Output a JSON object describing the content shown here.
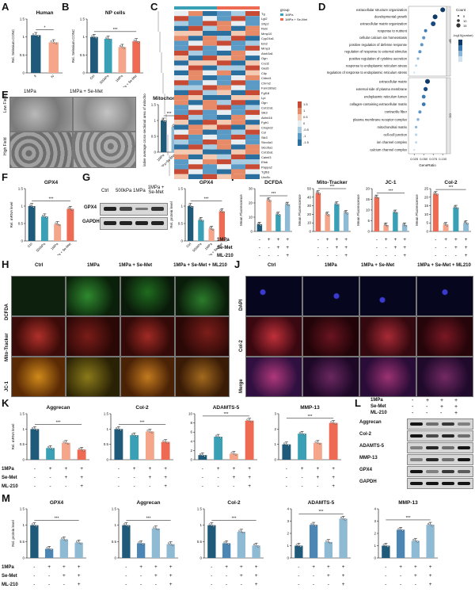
{
  "panels": {
    "A": "A",
    "B": "B",
    "C": "C",
    "D": "D",
    "E": "E",
    "F": "F",
    "G": "G",
    "H": "H",
    "I": "I",
    "J": "J",
    "K": "K",
    "L": "L",
    "M": "M"
  },
  "colors": {
    "dark": "#1f5a7a",
    "teal": "#3aa0b5",
    "salmon": "#f4a58a",
    "red": "#ef6a52",
    "light": "#8fbad3",
    "blue": "#4c86b4"
  },
  "panelA": {
    "title": "Human",
    "ylabel": "Rel. Selenium CONC",
    "sig": "*",
    "categories": [
      "II",
      "IV"
    ]
  },
  "panelB": {
    "title": "NP cells",
    "ylabel": "Rel. Selenium CONC",
    "categories": [
      "Ctrl",
      "500kPa",
      "1MPa",
      "1MPa + Se-Met"
    ],
    "sig": [
      "ns",
      "***",
      "*"
    ]
  },
  "panelC": {
    "legend_title": "group",
    "legend": [
      "1MPa",
      "1MPa + Se-Met"
    ],
    "genes": [
      "Tg",
      "Lgi2",
      "Sfrp2",
      "Reln",
      "Mmp10",
      "Cyp24a1",
      "Eln2",
      "Mmp3",
      "Atoh3a1",
      "Ogn",
      "Cxcl2",
      "Gas6",
      "Cilp",
      "Cldnd1",
      "Chrm2",
      "Fam180a1",
      "Fgf18",
      "Lpl",
      "Ogn",
      "Col12a1",
      "Sik3",
      "Abhd16",
      "Fgfr1",
      "Crispld2",
      "Col",
      "Sik3",
      "Slco4a1",
      "Slco5a1",
      "Col16a1",
      "Calml3",
      "Efnb",
      "Pappa2",
      "Tgfb3",
      "Unc5c"
    ],
    "scale": [
      "1.5",
      "1",
      "0.5",
      "0",
      "-0.5",
      "-1",
      "-1.5"
    ]
  },
  "panelD": {
    "top_terms": [
      "extracellular structure organization",
      "developmental growth",
      "extracellular matrix organization",
      "response to nutrient",
      "cellular calcium ion homeostasis",
      "positive regulation of defense response",
      "regulation of response to external stimulus",
      "positive regulation of cytokine secretion",
      "response to endoplasmic reticulum stress",
      "regulation of response to endoplasmic reticulum stress"
    ],
    "bottom_terms": [
      "extracellular matrix",
      "external side of plasma membrane",
      "endoplasmic reticulum lumen",
      "collagen-containing extracellular matrix",
      "contractile fiber",
      "plasma membrane receptor complex",
      "mitochondrial matrix",
      "cell-cell junction",
      "ion channel complex",
      "calcium channel complex"
    ],
    "xlabel": "GeneRatio",
    "xticks": [
      "0.025",
      "0.050",
      "0.075",
      "0.100"
    ],
    "count_title": "Count",
    "count_vals": [
      "5",
      "10",
      "15"
    ],
    "padj_title": "-log10(pvalue)",
    "side_labels": [
      "BP",
      "CC"
    ]
  },
  "panelE": {
    "headers": [
      "1MPa",
      "1MPa + Se-Met"
    ],
    "rows": [
      "Low Field",
      "High Field"
    ],
    "chart1_title": "Mitochondria",
    "chart2_title": "ER",
    "ylabel1": "Relative average cross-sectional area of mitochondria",
    "ylabel2": "Relative width of ER",
    "sig": "*",
    "xcats": [
      "1MPa",
      "1MPa+Se-Met"
    ]
  },
  "panelF": {
    "title": "GPX4",
    "ylabel": "Rel. mRNA level",
    "categories": [
      "Ctrl",
      "500kPa",
      "1MPa",
      "1MPa + Se-Met"
    ],
    "sig": [
      "***",
      "***",
      "***"
    ]
  },
  "panelG": {
    "headers": [
      "Ctrl",
      "500kPa",
      "1MPa",
      "1MPa + Se-Met"
    ],
    "bands": [
      "GPX4",
      "GAPDH"
    ],
    "title": "GPX4",
    "ylabel": "Rel. protein level",
    "sig": [
      "****",
      "****",
      "**"
    ]
  },
  "panelH": {
    "headers": [
      "Ctrl",
      "1MPa",
      "1MPa + Se-Met",
      "1MPa + Se-Met + ML210"
    ],
    "rows": [
      "DCFDA",
      "Mito-Tracker",
      "JC-1"
    ]
  },
  "panelI": {
    "charts": [
      {
        "title": "DCFDA",
        "ylabel": "Mean Fluorescence"
      },
      {
        "title": "Mito-Tracker",
        "ylabel": "Mean Fluorescence"
      },
      {
        "title": "JC-1",
        "ylabel": "Mean Fluorescence"
      },
      {
        "title": "Col-2",
        "ylabel": "Mean Fluorescence"
      }
    ],
    "conds": [
      "1MPa",
      "Se-Met",
      "ML-210"
    ],
    "signs": [
      [
        "-",
        "+",
        "+",
        "+"
      ],
      [
        "-",
        "-",
        "+",
        "+"
      ],
      [
        "-",
        "-",
        "-",
        "+"
      ]
    ]
  },
  "panelJ": {
    "headers": [
      "Ctrl",
      "1MPa",
      "1MPa + Se-Met",
      "1MPa + Se-Met + ML210"
    ],
    "rows": [
      "DAPI",
      "Col-2",
      "Merge"
    ]
  },
  "panelK": {
    "ylabel": "Rel. mRNA level",
    "charts": [
      "Aggrecan",
      "Col-2",
      "ADAMTS-5",
      "MMP-13"
    ],
    "conds": [
      "1MPa",
      "Se-Met",
      "ML-210"
    ],
    "signs": [
      [
        "-",
        "+",
        "+",
        "+"
      ],
      [
        "-",
        "-",
        "+",
        "+"
      ],
      [
        "-",
        "-",
        "-",
        "+"
      ]
    ]
  },
  "panelL": {
    "conds": [
      "1MPa",
      "Se-Met",
      "ML-210"
    ],
    "signs": [
      [
        "-",
        "+",
        "+",
        "+"
      ],
      [
        "-",
        "-",
        "+",
        "+"
      ],
      [
        "-",
        "-",
        "-",
        "+"
      ]
    ],
    "bands": [
      "Aggrecan",
      "Col-2",
      "ADAMTS-5",
      "MMP-13",
      "GPX4",
      "GAPDH"
    ]
  },
  "panelM": {
    "ylabel": "Rel. protein level",
    "charts": [
      "GPX4",
      "Aggrecan",
      "Col-2",
      "ADAMTS-5",
      "MMP-13"
    ],
    "conds": [
      "1MPa",
      "Se-Met",
      "ML-210"
    ],
    "signs": [
      [
        "-",
        "+",
        "+",
        "+"
      ],
      [
        "-",
        "-",
        "+",
        "+"
      ],
      [
        "-",
        "-",
        "-",
        "+"
      ]
    ]
  },
  "chart_data": [
    {
      "type": "bar",
      "id": "A",
      "categories": [
        "II",
        "IV"
      ],
      "values": [
        1.05,
        0.85
      ],
      "ylim": [
        0,
        1.5
      ],
      "yticks": [
        0,
        0.5,
        1.0,
        1.5
      ],
      "colors": [
        "#1f5a7a",
        "#f4a58a"
      ]
    },
    {
      "type": "bar",
      "id": "B",
      "categories": [
        "Ctrl",
        "500kPa",
        "1MPa",
        "1MPa + Se-Met"
      ],
      "values": [
        1.0,
        0.95,
        0.72,
        0.88
      ],
      "ylim": [
        0,
        1.5
      ],
      "yticks": [
        0,
        0.5,
        1.0,
        1.5
      ],
      "colors": [
        "#1f5a7a",
        "#3aa0b5",
        "#f4a58a",
        "#ef6a52"
      ]
    },
    {
      "type": "bar",
      "id": "E1",
      "categories": [
        "1MPa",
        "1MPa+Se-Met"
      ],
      "values": [
        1.0,
        0.8
      ],
      "ylim": [
        0,
        1.5
      ],
      "yticks": [
        0,
        0.5,
        1.0,
        1.5
      ],
      "colors": [
        "#1f5a7a",
        "#8fbad3"
      ]
    },
    {
      "type": "bar",
      "id": "E2",
      "categories": [
        "1MPa",
        "1MPa+Se-Met"
      ],
      "values": [
        1.0,
        0.7
      ],
      "ylim": [
        0,
        1.5
      ],
      "yticks": [
        0,
        0.5,
        1.0,
        1.5
      ],
      "colors": [
        "#1f5a7a",
        "#8fbad3"
      ]
    },
    {
      "type": "bar",
      "id": "F",
      "categories": [
        "Ctrl",
        "500kPa",
        "1MPa",
        "1MPa + Se-Met"
      ],
      "values": [
        1.0,
        0.7,
        0.48,
        0.92
      ],
      "ylim": [
        0,
        1.5
      ],
      "yticks": [
        0,
        0.5,
        1.0,
        1.5
      ],
      "colors": [
        "#1f5a7a",
        "#3aa0b5",
        "#f4a58a",
        "#ef6a52"
      ]
    },
    {
      "type": "bar",
      "id": "G",
      "categories": [
        "Ctrl",
        "500kPa",
        "1MPa",
        "1MPa + Se-Met"
      ],
      "values": [
        1.0,
        0.6,
        0.35,
        0.85
      ],
      "ylim": [
        0,
        1.5
      ],
      "yticks": [
        0,
        0.5,
        1.0,
        1.5
      ],
      "colors": [
        "#1f5a7a",
        "#3aa0b5",
        "#f4a58a",
        "#ef6a52"
      ]
    },
    {
      "type": "bar",
      "id": "I1",
      "title": "DCFDA",
      "values": [
        5,
        22,
        12,
        19
      ],
      "ylim": [
        0,
        30
      ],
      "yticks": [
        0,
        10,
        20,
        30
      ],
      "colors": [
        "#1f5a7a",
        "#f4a58a",
        "#3aa0b5",
        "#8fbad3"
      ]
    },
    {
      "type": "bar",
      "id": "I2",
      "title": "Mito-Tracker",
      "values": [
        45,
        20,
        32,
        22
      ],
      "ylim": [
        0,
        50
      ],
      "yticks": [
        0,
        10,
        20,
        30,
        40,
        50
      ],
      "colors": [
        "#ef6a52",
        "#f4a58a",
        "#3aa0b5",
        "#8fbad3"
      ]
    },
    {
      "type": "bar",
      "id": "I3",
      "title": "JC-1",
      "values": [
        16,
        3,
        9,
        3
      ],
      "ylim": [
        0,
        20
      ],
      "yticks": [
        0,
        5,
        10,
        15,
        20
      ],
      "colors": [
        "#ef6a52",
        "#f4a58a",
        "#3aa0b5",
        "#8fbad3"
      ]
    },
    {
      "type": "bar",
      "id": "I4",
      "title": "Col-2",
      "values": [
        22,
        4,
        14,
        5
      ],
      "ylim": [
        0,
        25
      ],
      "yticks": [
        0,
        5,
        10,
        15,
        20,
        25
      ],
      "colors": [
        "#ef6a52",
        "#f4a58a",
        "#3aa0b5",
        "#8fbad3"
      ]
    },
    {
      "type": "bar",
      "id": "K1",
      "title": "Aggrecan",
      "values": [
        1.0,
        0.38,
        0.55,
        0.33
      ],
      "ylim": [
        0,
        1.5
      ],
      "yticks": [
        0,
        0.5,
        1.0,
        1.5
      ],
      "colors": [
        "#1f5a7a",
        "#3aa0b5",
        "#f4a58a",
        "#ef6a52"
      ]
    },
    {
      "type": "bar",
      "id": "K2",
      "title": "Col-2",
      "values": [
        1.0,
        0.8,
        0.92,
        0.58
      ],
      "ylim": [
        0,
        1.5
      ],
      "yticks": [
        0,
        0.5,
        1.0,
        1.5
      ],
      "colors": [
        "#1f5a7a",
        "#3aa0b5",
        "#f4a58a",
        "#ef6a52"
      ]
    },
    {
      "type": "bar",
      "id": "K3",
      "title": "ADAMTS-5",
      "values": [
        1.0,
        5.0,
        1.3,
        8.5
      ],
      "ylim": [
        0,
        10
      ],
      "yticks": [
        0,
        2,
        4,
        6,
        8,
        10
      ],
      "colors": [
        "#1f5a7a",
        "#3aa0b5",
        "#f4a58a",
        "#ef6a52"
      ]
    },
    {
      "type": "bar",
      "id": "K4",
      "title": "MMP-13",
      "values": [
        1.0,
        1.7,
        1.1,
        2.4
      ],
      "ylim": [
        0,
        3
      ],
      "yticks": [
        0,
        1,
        2,
        3
      ],
      "colors": [
        "#1f5a7a",
        "#3aa0b5",
        "#f4a58a",
        "#ef6a52"
      ]
    },
    {
      "type": "bar",
      "id": "M1",
      "title": "GPX4",
      "values": [
        1.0,
        0.28,
        0.57,
        0.47
      ],
      "ylim": [
        0,
        1.5
      ],
      "yticks": [
        0,
        0.5,
        1.0,
        1.5
      ],
      "colors": [
        "#1f5a7a",
        "#4c86b4",
        "#8fbad3",
        "#8fbad3"
      ]
    },
    {
      "type": "bar",
      "id": "M2",
      "title": "Aggrecan",
      "values": [
        1.0,
        0.45,
        0.9,
        0.42
      ],
      "ylim": [
        0,
        1.5
      ],
      "yticks": [
        0,
        0.5,
        1.0,
        1.5
      ],
      "colors": [
        "#1f5a7a",
        "#4c86b4",
        "#8fbad3",
        "#8fbad3"
      ]
    },
    {
      "type": "bar",
      "id": "M3",
      "title": "Col-2",
      "values": [
        1.0,
        0.45,
        0.8,
        0.38
      ],
      "ylim": [
        0,
        1.5
      ],
      "yticks": [
        0,
        0.5,
        1.0,
        1.5
      ],
      "colors": [
        "#1f5a7a",
        "#4c86b4",
        "#8fbad3",
        "#8fbad3"
      ]
    },
    {
      "type": "bar",
      "id": "M4",
      "title": "ADAMTS-5",
      "values": [
        1.0,
        2.7,
        1.3,
        3.2
      ],
      "ylim": [
        0,
        4
      ],
      "yticks": [
        0,
        1,
        2,
        3,
        4
      ],
      "colors": [
        "#1f5a7a",
        "#4c86b4",
        "#8fbad3",
        "#8fbad3"
      ]
    },
    {
      "type": "bar",
      "id": "M5",
      "title": "MMP-13",
      "values": [
        1.0,
        2.3,
        1.4,
        2.7
      ],
      "ylim": [
        0,
        4
      ],
      "yticks": [
        0,
        1,
        2,
        3,
        4
      ],
      "colors": [
        "#1f5a7a",
        "#4c86b4",
        "#8fbad3",
        "#8fbad3"
      ]
    }
  ]
}
